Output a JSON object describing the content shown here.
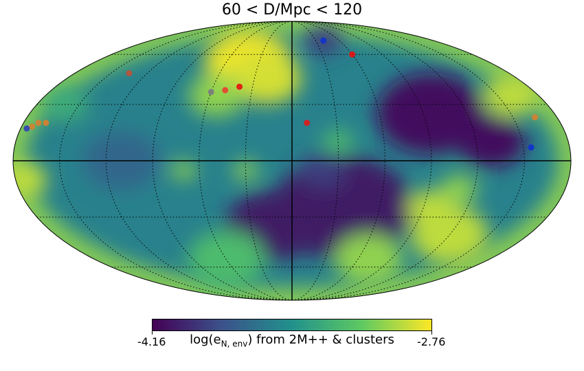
{
  "chart_data": {
    "type": "heatmap",
    "projection": "mollweide all-sky map",
    "title": "60 < D/Mpc < 120",
    "colorbar": {
      "min_label": "-4.16",
      "max_label": "-2.76",
      "vmin": -4.16,
      "vmax": -2.76,
      "label_prefix": "log(e",
      "label_subscript": "N, env",
      "label_suffix": ") from 2M++ & clusters",
      "colormap": [
        "#440154",
        "#3b528b",
        "#21918c",
        "#5ec962",
        "#fde725"
      ]
    },
    "graticule": {
      "meridian_step_deg": 30,
      "parallel_step_deg": 30,
      "style": "dotted"
    },
    "field_blobs_lon_lat_deg": [
      {
        "lon": 40,
        "lat": 55,
        "value": -2.8,
        "size_deg": 28
      },
      {
        "lon": 20,
        "lat": 45,
        "value": -2.85,
        "size_deg": 22
      },
      {
        "lon": 55,
        "lat": 35,
        "value": -3.0,
        "size_deg": 18
      },
      {
        "lon": -35,
        "lat": -25,
        "value": -4.05,
        "size_deg": 45
      },
      {
        "lon": 15,
        "lat": -35,
        "value": -4.05,
        "size_deg": 30
      },
      {
        "lon": -95,
        "lat": 25,
        "value": -4.1,
        "size_deg": 35
      },
      {
        "lon": -130,
        "lat": 10,
        "value": -4.1,
        "size_deg": 22
      },
      {
        "lon": -160,
        "lat": 35,
        "value": -2.9,
        "size_deg": 18
      },
      {
        "lon": -120,
        "lat": -40,
        "value": -2.9,
        "size_deg": 25
      },
      {
        "lon": -95,
        "lat": -25,
        "value": -2.9,
        "size_deg": 15
      },
      {
        "lon": -110,
        "lat": -15,
        "value": -3.0,
        "size_deg": 12
      },
      {
        "lon": 175,
        "lat": -10,
        "value": -2.9,
        "size_deg": 15
      },
      {
        "lon": 60,
        "lat": -55,
        "value": -3.2,
        "size_deg": 25
      },
      {
        "lon": -70,
        "lat": -55,
        "value": -3.0,
        "size_deg": 22
      },
      {
        "lon": 160,
        "lat": 30,
        "value": -3.3,
        "size_deg": 15
      },
      {
        "lon": 30,
        "lat": -5,
        "value": -3.0,
        "size_deg": 8
      },
      {
        "lon": 70,
        "lat": -5,
        "value": -3.0,
        "size_deg": 8
      },
      {
        "lon": -30,
        "lat": 10,
        "value": -3.2,
        "size_deg": 10
      },
      {
        "lon": -40,
        "lat": 70,
        "value": -3.9,
        "size_deg": 12
      },
      {
        "lon": -20,
        "lat": -5,
        "value": -3.9,
        "size_deg": 15
      },
      {
        "lon": 110,
        "lat": 0,
        "value": -3.7,
        "size_deg": 25
      }
    ],
    "cluster_markers_lon_lat_deg": [
      {
        "lon": 40,
        "lat": 40,
        "color": "#e81010"
      },
      {
        "lon": 50,
        "lat": 38,
        "color": "#e84030"
      },
      {
        "lon": 60,
        "lat": 37,
        "color": "#7a7a80"
      },
      {
        "lon": -40,
        "lat": 70,
        "color": "#1030d0"
      },
      {
        "lon": -60,
        "lat": 60,
        "color": "#e81010"
      },
      {
        "lon": -10,
        "lat": 20,
        "color": "#e01818"
      },
      {
        "lon": 135,
        "lat": 48,
        "color": "#c0503a"
      },
      {
        "lon": 165,
        "lat": 20,
        "color": "#d88030"
      },
      {
        "lon": 170,
        "lat": 20,
        "color": "#d88030"
      },
      {
        "lon": 173,
        "lat": 18,
        "color": "#d88030"
      },
      {
        "lon": 176,
        "lat": 17,
        "color": "#3040b8"
      },
      {
        "lon": -165,
        "lat": 23,
        "color": "#d88030"
      },
      {
        "lon": -155,
        "lat": 7,
        "color": "#1030d0"
      }
    ]
  }
}
